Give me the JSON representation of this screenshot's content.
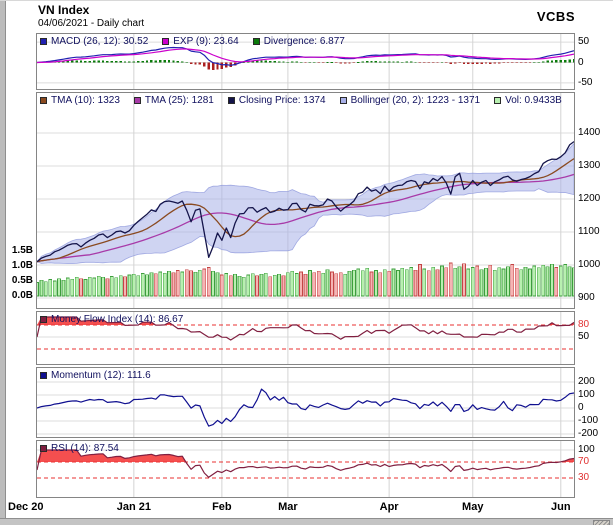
{
  "header": {
    "title": "VN Index",
    "subtitle": "04/06/2021 - Daily chart",
    "brand": "VCBS"
  },
  "colors": {
    "grid": "#dcdcdc",
    "month_grid": "#d4d4d4",
    "panel_border": "#858585",
    "threshold": "#e83030",
    "overbought_fill": "#f23030",
    "vol_up_fill": "#b8f0b0",
    "vol_up_stroke": "#3d9e3d",
    "vol_down_fill": "#f6b4b4",
    "vol_down_stroke": "#c44444",
    "hist_up": "#0a7a0a",
    "hist_down": "#aa2020",
    "bollinger_fill": "#a8b0e8",
    "bollinger_edge": "#8f98dc"
  },
  "readouts": {
    "macd": 30.52,
    "exp9": 23.64,
    "divergence": 6.877,
    "tma10": 1323,
    "tma25": 1281,
    "closing_price": 1374,
    "bollinger_low": 1223,
    "bollinger_high": 1371,
    "volume": "0.9433B",
    "money_flow_index": 86.67,
    "momentum": 111.6,
    "rsi": 87.54
  },
  "chart_data": {
    "type": "line",
    "title": "VN Index - Daily chart - 04/06/2021",
    "x": {
      "months": [
        {
          "label": "Dec 20",
          "days": 22
        },
        {
          "label": "Jan 21",
          "days": 20
        },
        {
          "label": "Feb",
          "days": 15
        },
        {
          "label": "Mar",
          "days": 23
        },
        {
          "label": "Apr",
          "days": 19
        },
        {
          "label": "May",
          "days": 20
        },
        {
          "label": "Jun",
          "days": 4
        }
      ]
    },
    "series": {
      "close": [
        1010,
        1021,
        1026,
        1030,
        1040,
        1045,
        1052,
        1060,
        1064,
        1065,
        1055,
        1066,
        1075,
        1081,
        1091,
        1094,
        1083,
        1091,
        1101,
        1103,
        1097,
        1104,
        1120,
        1132,
        1143,
        1154,
        1167,
        1162,
        1184,
        1192,
        1194,
        1191,
        1187,
        1194,
        1166,
        1131,
        1166,
        1170,
        1097,
        1023,
        1056,
        1097,
        1075,
        1112,
        1083,
        1127,
        1155,
        1156,
        1173,
        1174,
        1160,
        1168,
        1174,
        1159,
        1163,
        1172,
        1166,
        1168,
        1186,
        1187,
        1168,
        1161,
        1184,
        1180,
        1179,
        1182,
        1200,
        1194,
        1176,
        1163,
        1175,
        1182,
        1194,
        1216,
        1221,
        1236,
        1224,
        1228,
        1216,
        1239,
        1224,
        1236,
        1241,
        1242,
        1252,
        1256,
        1253,
        1231,
        1252,
        1248,
        1262,
        1255,
        1268,
        1248,
        1215,
        1268,
        1278,
        1229,
        1239,
        1256,
        1241,
        1251,
        1256,
        1241,
        1252,
        1258,
        1266,
        1269,
        1258,
        1254,
        1259,
        1262,
        1268,
        1277,
        1283,
        1308,
        1316,
        1321,
        1320,
        1328,
        1340,
        1364,
        1374
      ],
      "volume_billions": [
        0.45,
        0.52,
        0.48,
        0.55,
        0.5,
        0.58,
        0.53,
        0.6,
        0.56,
        0.62,
        0.58,
        0.55,
        0.63,
        0.6,
        0.66,
        0.62,
        0.58,
        0.65,
        0.61,
        0.68,
        0.64,
        0.7,
        0.72,
        0.68,
        0.75,
        0.71,
        0.78,
        0.74,
        0.8,
        0.76,
        0.82,
        0.78,
        0.85,
        0.8,
        0.88,
        0.84,
        0.79,
        0.86,
        0.9,
        0.95,
        0.82,
        0.78,
        0.7,
        0.75,
        0.68,
        0.72,
        0.66,
        0.63,
        0.7,
        0.74,
        0.68,
        0.72,
        0.76,
        0.64,
        0.69,
        0.73,
        0.67,
        0.78,
        0.82,
        0.75,
        0.8,
        0.73,
        0.85,
        0.78,
        0.82,
        0.76,
        0.88,
        0.8,
        0.74,
        0.78,
        0.72,
        0.82,
        0.86,
        0.9,
        0.84,
        0.92,
        0.8,
        0.85,
        0.78,
        0.88,
        0.82,
        0.9,
        0.85,
        0.92,
        0.88,
        0.95,
        0.86,
        1.05,
        0.9,
        0.84,
        0.96,
        0.88,
        1.0,
        0.94,
        1.1,
        0.92,
        0.98,
        1.08,
        0.9,
        0.95,
        1.0,
        0.88,
        0.92,
        1.02,
        0.86,
        0.94,
        0.9,
        0.98,
        1.05,
        0.92,
        0.88,
        0.96,
        0.9,
        1.0,
        0.94,
        1.02,
        0.98,
        1.06,
        0.95,
        1.0,
        1.05,
        0.98,
        0.9433
      ]
    },
    "panels": [
      {
        "id": "macd",
        "subtype": "line+histogram",
        "legend": [
          {
            "label": "MACD (26, 12): 30.52",
            "color": "#2020b0"
          },
          {
            "label": "EXP (9): 23.64",
            "color": "#cc00cc"
          },
          {
            "label": "Divergence: 6.877",
            "color": "#0a7a0a"
          }
        ],
        "yticks": [
          {
            "v": 50,
            "label": "50"
          },
          {
            "v": 0,
            "label": "0"
          },
          {
            "v": -50,
            "label": "-50"
          }
        ],
        "ylim": [
          -65,
          65
        ]
      },
      {
        "id": "price",
        "subtype": "line+band+volume-bars",
        "legend": [
          {
            "label": "TMA (10): 1323",
            "color": "#8a4a20"
          },
          {
            "label": "TMA (25): 1281",
            "color": "#a83aa8"
          },
          {
            "label": "Closing Price: 1374",
            "color": "#14144a"
          },
          {
            "label": "Bollinger (20, 2): 1223 - 1371",
            "color": "#a8b0e8"
          },
          {
            "label": "Vol: 0.9433B",
            "color": "#b8f0b0"
          }
        ],
        "yticks": [
          {
            "v": 1400,
            "label": "1400"
          },
          {
            "v": 1300,
            "label": "1300"
          },
          {
            "v": 1200,
            "label": "1200"
          },
          {
            "v": 1100,
            "label": "1100"
          },
          {
            "v": 1000,
            "label": "1000"
          },
          {
            "v": 900,
            "label": "900"
          }
        ],
        "left_ticks": [
          {
            "v": 1.5,
            "label": "1.5B"
          },
          {
            "v": 1.0,
            "label": "1.0B"
          },
          {
            "v": 0.5,
            "label": "0.5B"
          },
          {
            "v": 0.0,
            "label": "0.0B"
          }
        ],
        "ylim": [
          900,
          1400
        ]
      },
      {
        "id": "mfi",
        "subtype": "line",
        "legend": [
          {
            "label": "Money Flow Index (14): 86.67",
            "color": "#801f40"
          }
        ],
        "yticks": [
          {
            "v": 80,
            "label": "80",
            "red": true
          },
          {
            "v": 50,
            "label": "50"
          }
        ],
        "thresholds": [
          80,
          20
        ],
        "ylim": [
          0,
          100
        ]
      },
      {
        "id": "momentum",
        "subtype": "line",
        "legend": [
          {
            "label": "Momentum (12): 111.6",
            "color": "#101090"
          }
        ],
        "yticks": [
          {
            "v": 200,
            "label": "200"
          },
          {
            "v": 100,
            "label": "100"
          },
          {
            "v": 0,
            "label": "0"
          },
          {
            "v": -100,
            "label": "-100"
          },
          {
            "v": -200,
            "label": "-200"
          }
        ],
        "ylim": [
          -230,
          230
        ]
      },
      {
        "id": "rsi",
        "subtype": "line",
        "legend": [
          {
            "label": "RSI (14): 87.54",
            "color": "#801f40"
          }
        ],
        "yticks": [
          {
            "v": 100,
            "label": "100"
          },
          {
            "v": 70,
            "label": "70",
            "red": true
          },
          {
            "v": 30,
            "label": "30",
            "red": true
          }
        ],
        "thresholds": [
          70,
          30
        ],
        "ylim": [
          0,
          100
        ]
      }
    ]
  }
}
